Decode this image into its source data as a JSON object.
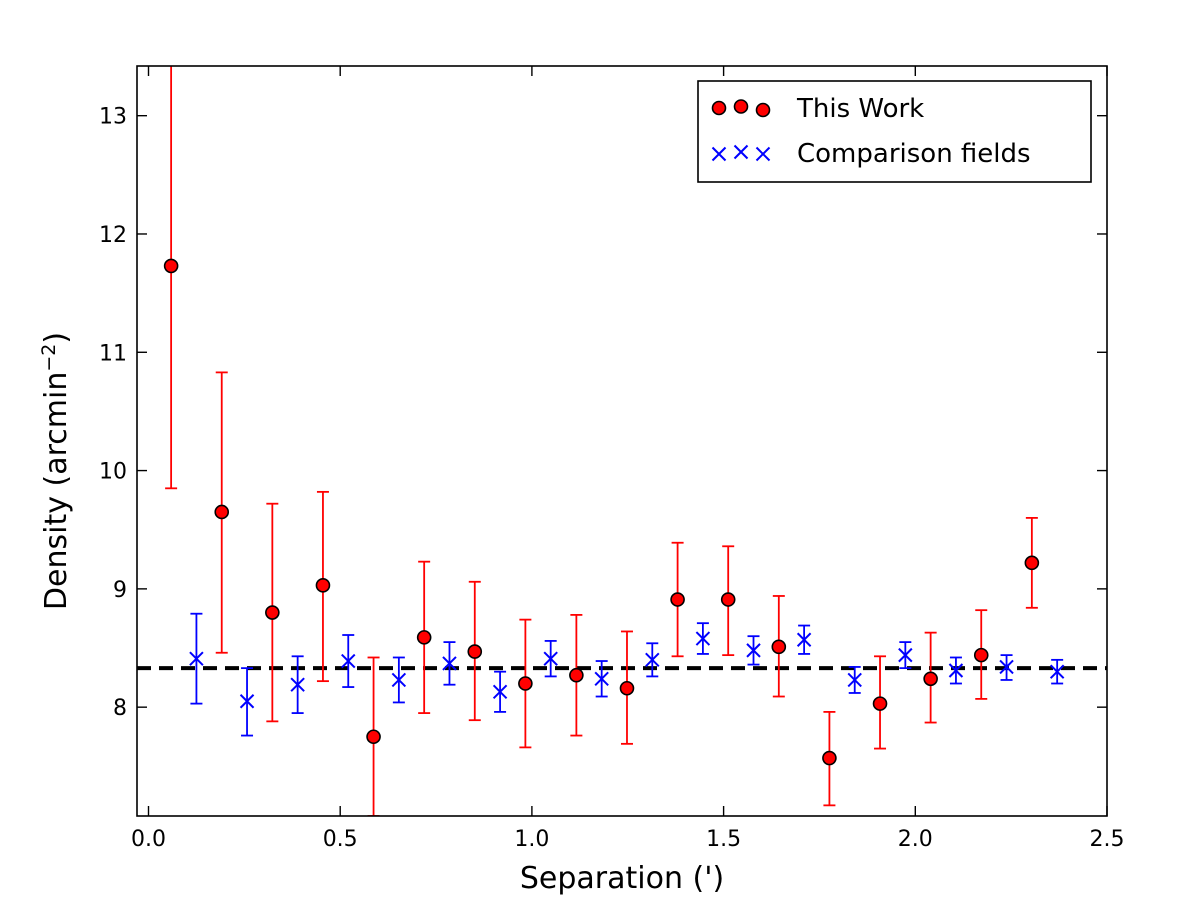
{
  "chart_data": {
    "type": "scatter",
    "xlabel": "Separation (')",
    "ylabel": "Density (arcmin",
    "ylabel_sup": "−2",
    "ylabel_close": ")",
    "xlim": [
      -0.03,
      2.5
    ],
    "ylim": [
      7.08,
      13.42
    ],
    "xticks": [
      {
        "value": 0.0,
        "label": "0.0"
      },
      {
        "value": 0.5,
        "label": "0.5"
      },
      {
        "value": 1.0,
        "label": "1.0"
      },
      {
        "value": 1.5,
        "label": "1.5"
      },
      {
        "value": 2.0,
        "label": "2.0"
      },
      {
        "value": 2.5,
        "label": "2.5"
      }
    ],
    "yticks": [
      {
        "value": 8,
        "label": "8"
      },
      {
        "value": 9,
        "label": "9"
      },
      {
        "value": 10,
        "label": "10"
      },
      {
        "value": 11,
        "label": "11"
      },
      {
        "value": 12,
        "label": "12"
      },
      {
        "value": 13,
        "label": "13"
      }
    ],
    "reference_line": {
      "y": 8.33,
      "style": "dashed",
      "color": "#000000"
    },
    "legend_position": "top-right",
    "series": [
      {
        "name": "This Work",
        "marker": "circle",
        "color": "#ff0000",
        "points": [
          {
            "x": 0.059,
            "y": 11.73,
            "lo": 9.85,
            "hi": 13.45
          },
          {
            "x": 0.191,
            "y": 9.65,
            "lo": 8.46,
            "hi": 10.83
          },
          {
            "x": 0.323,
            "y": 8.8,
            "lo": 7.88,
            "hi": 9.72
          },
          {
            "x": 0.455,
            "y": 9.03,
            "lo": 8.22,
            "hi": 9.82
          },
          {
            "x": 0.587,
            "y": 7.75,
            "lo": 7.08,
            "hi": 8.42
          },
          {
            "x": 0.719,
            "y": 8.59,
            "lo": 7.95,
            "hi": 9.23
          },
          {
            "x": 0.851,
            "y": 8.47,
            "lo": 7.89,
            "hi": 9.06
          },
          {
            "x": 0.983,
            "y": 8.2,
            "lo": 7.66,
            "hi": 8.74
          },
          {
            "x": 1.116,
            "y": 8.27,
            "lo": 7.76,
            "hi": 8.78
          },
          {
            "x": 1.248,
            "y": 8.16,
            "lo": 7.69,
            "hi": 8.64
          },
          {
            "x": 1.38,
            "y": 8.91,
            "lo": 8.43,
            "hi": 9.39
          },
          {
            "x": 1.512,
            "y": 8.91,
            "lo": 8.44,
            "hi": 9.36
          },
          {
            "x": 1.644,
            "y": 8.51,
            "lo": 8.09,
            "hi": 8.94
          },
          {
            "x": 1.776,
            "y": 7.57,
            "lo": 7.17,
            "hi": 7.96
          },
          {
            "x": 1.908,
            "y": 8.03,
            "lo": 7.65,
            "hi": 8.43
          },
          {
            "x": 2.04,
            "y": 8.24,
            "lo": 7.87,
            "hi": 8.63
          },
          {
            "x": 2.172,
            "y": 8.44,
            "lo": 8.07,
            "hi": 8.82
          },
          {
            "x": 2.304,
            "y": 9.22,
            "lo": 8.84,
            "hi": 9.6
          }
        ]
      },
      {
        "name": "Comparison fields",
        "marker": "x",
        "color": "#0000ff",
        "points": [
          {
            "x": 0.125,
            "y": 8.41,
            "lo": 8.03,
            "hi": 8.79
          },
          {
            "x": 0.257,
            "y": 8.05,
            "lo": 7.76,
            "hi": 8.33
          },
          {
            "x": 0.389,
            "y": 8.19,
            "lo": 7.95,
            "hi": 8.43
          },
          {
            "x": 0.521,
            "y": 8.39,
            "lo": 8.17,
            "hi": 8.61
          },
          {
            "x": 0.653,
            "y": 8.23,
            "lo": 8.04,
            "hi": 8.42
          },
          {
            "x": 0.785,
            "y": 8.37,
            "lo": 8.19,
            "hi": 8.55
          },
          {
            "x": 0.917,
            "y": 8.13,
            "lo": 7.96,
            "hi": 8.3
          },
          {
            "x": 1.049,
            "y": 8.41,
            "lo": 8.26,
            "hi": 8.56
          },
          {
            "x": 1.182,
            "y": 8.24,
            "lo": 8.09,
            "hi": 8.39
          },
          {
            "x": 1.314,
            "y": 8.4,
            "lo": 8.26,
            "hi": 8.54
          },
          {
            "x": 1.446,
            "y": 8.58,
            "lo": 8.45,
            "hi": 8.71
          },
          {
            "x": 1.578,
            "y": 8.48,
            "lo": 8.36,
            "hi": 8.6
          },
          {
            "x": 1.71,
            "y": 8.57,
            "lo": 8.45,
            "hi": 8.69
          },
          {
            "x": 1.842,
            "y": 8.23,
            "lo": 8.12,
            "hi": 8.34
          },
          {
            "x": 1.974,
            "y": 8.44,
            "lo": 8.33,
            "hi": 8.55
          },
          {
            "x": 2.106,
            "y": 8.31,
            "lo": 8.2,
            "hi": 8.42
          },
          {
            "x": 2.238,
            "y": 8.34,
            "lo": 8.23,
            "hi": 8.44
          },
          {
            "x": 2.37,
            "y": 8.3,
            "lo": 8.2,
            "hi": 8.4
          }
        ]
      }
    ]
  }
}
